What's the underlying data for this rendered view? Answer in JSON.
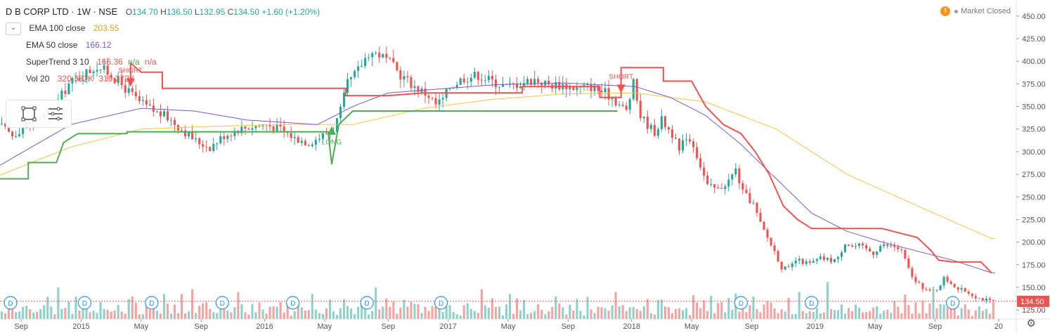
{
  "header": {
    "symbol": "D B CORP LTD · 1W · NSE",
    "ohlc": [
      {
        "label": "O",
        "value": "134.70"
      },
      {
        "label": "H",
        "value": "136.50"
      },
      {
        "label": "L",
        "value": "132.95"
      },
      {
        "label": "C",
        "value": "134.50"
      }
    ],
    "change": "+1.60 (+1.20%)",
    "market_status": "Market Closed"
  },
  "indicators": [
    {
      "name": "EMA 100 close",
      "values": [
        "203.55"
      ],
      "colors": [
        "#d4a017"
      ]
    },
    {
      "name": "EMA 50 close",
      "values": [
        "166.12"
      ],
      "colors": [
        "#7e57c2"
      ]
    },
    {
      "name": "SuperTrend 3 10",
      "values": [
        "166.36",
        "n/a",
        "n/a"
      ],
      "colors": [
        "#ef5350",
        "#4caf50",
        "#ef5350"
      ]
    },
    {
      "name": "Vol 20",
      "values": [
        "320.332K",
        "319.272K"
      ],
      "colors": [
        "#ef5350",
        "#ef5350"
      ]
    }
  ],
  "icons": {
    "collapse": "chevron-down-icon",
    "rectangle_tool": "rectangle-tool-icon",
    "lines_tool": "lines-tool-icon",
    "alert": "alert-icon",
    "settings": "gear-icon"
  },
  "colors": {
    "up": "#26a69a",
    "down": "#ef5350",
    "ema100": "#f5c342",
    "ema50": "#7e57c2",
    "st_red": "#ef5350",
    "st_green": "#4caf50",
    "vol_up": "#8ed2c9",
    "vol_down": "#f5a3a1"
  },
  "chart_data": {
    "type": "candlestick",
    "yaxis": {
      "ticks": [
        125,
        150,
        175,
        200,
        225,
        250,
        275,
        300,
        325,
        350,
        375,
        400,
        425,
        450
      ],
      "tick_labels": [
        "125.00",
        "150.00",
        "175.00",
        "200.00",
        "225.00",
        "250.00",
        "275.00",
        "300.00",
        "325.00",
        "350.00",
        "375.00",
        "400.00",
        "425.00",
        "450.00"
      ],
      "range": [
        115,
        460
      ]
    },
    "xaxis": {
      "ticks": [
        {
          "label": "Sep",
          "t": 6
        },
        {
          "label": "2015",
          "t": 23
        },
        {
          "label": "May",
          "t": 40
        },
        {
          "label": "Sep",
          "t": 57
        },
        {
          "label": "2016",
          "t": 75
        },
        {
          "label": "May",
          "t": 92
        },
        {
          "label": "Sep",
          "t": 110
        },
        {
          "label": "2017",
          "t": 127
        },
        {
          "label": "May",
          "t": 144
        },
        {
          "label": "Sep",
          "t": 161
        },
        {
          "label": "2018",
          "t": 179
        },
        {
          "label": "May",
          "t": 196
        },
        {
          "label": "Sep",
          "t": 213
        },
        {
          "label": "2019",
          "t": 231
        },
        {
          "label": "May",
          "t": 248
        },
        {
          "label": "Sep",
          "t": 265
        },
        {
          "label": "20",
          "t": 283
        }
      ],
      "range": [
        0,
        288
      ]
    },
    "price_keys": [
      [
        0,
        330
      ],
      [
        4,
        318
      ],
      [
        8,
        330
      ],
      [
        12,
        338
      ],
      [
        16,
        350
      ],
      [
        20,
        375
      ],
      [
        24,
        385
      ],
      [
        28,
        395
      ],
      [
        32,
        385
      ],
      [
        36,
        370
      ],
      [
        40,
        355
      ],
      [
        44,
        345
      ],
      [
        48,
        338
      ],
      [
        52,
        325
      ],
      [
        56,
        312
      ],
      [
        60,
        305
      ],
      [
        64,
        318
      ],
      [
        68,
        325
      ],
      [
        72,
        328
      ],
      [
        76,
        330
      ],
      [
        80,
        325
      ],
      [
        84,
        315
      ],
      [
        88,
        310
      ],
      [
        92,
        318
      ],
      [
        95,
        325
      ],
      [
        97,
        345
      ],
      [
        99,
        375
      ],
      [
        102,
        390
      ],
      [
        105,
        410
      ],
      [
        108,
        408
      ],
      [
        111,
        398
      ],
      [
        114,
        385
      ],
      [
        118,
        372
      ],
      [
        122,
        362
      ],
      [
        124,
        352
      ],
      [
        126,
        358
      ],
      [
        128,
        372
      ],
      [
        132,
        382
      ],
      [
        136,
        385
      ],
      [
        140,
        378
      ],
      [
        144,
        372
      ],
      [
        148,
        376
      ],
      [
        152,
        380
      ],
      [
        156,
        374
      ],
      [
        160,
        374
      ],
      [
        164,
        370
      ],
      [
        168,
        372
      ],
      [
        172,
        365
      ],
      [
        174,
        360
      ],
      [
        176,
        352
      ],
      [
        178,
        345
      ],
      [
        180,
        375
      ],
      [
        182,
        340
      ],
      [
        184,
        330
      ],
      [
        186,
        322
      ],
      [
        188,
        335
      ],
      [
        191,
        320
      ],
      [
        193,
        300
      ],
      [
        195,
        318
      ],
      [
        197,
        308
      ],
      [
        199,
        285
      ],
      [
        201,
        262
      ],
      [
        204,
        258
      ],
      [
        207,
        268
      ],
      [
        209,
        280
      ],
      [
        211,
        255
      ],
      [
        214,
        242
      ],
      [
        216,
        220
      ],
      [
        218,
        205
      ],
      [
        220,
        190
      ],
      [
        222,
        172
      ],
      [
        224,
        170
      ],
      [
        226,
        180
      ],
      [
        228,
        178
      ],
      [
        230,
        176
      ],
      [
        233,
        182
      ],
      [
        236,
        180
      ],
      [
        238,
        182
      ],
      [
        240,
        200
      ],
      [
        242,
        195
      ],
      [
        244,
        196
      ],
      [
        246,
        192
      ],
      [
        248,
        188
      ],
      [
        250,
        196
      ],
      [
        252,
        196
      ],
      [
        254,
        195
      ],
      [
        256,
        190
      ],
      [
        258,
        170
      ],
      [
        260,
        155
      ],
      [
        262,
        150
      ],
      [
        264,
        145
      ],
      [
        266,
        148
      ],
      [
        268,
        160
      ],
      [
        270,
        155
      ],
      [
        272,
        148
      ],
      [
        274,
        146
      ],
      [
        276,
        142
      ],
      [
        278,
        138
      ],
      [
        280,
        136
      ],
      [
        281,
        134.5
      ]
    ],
    "volume_levels": [
      0.3,
      0.2,
      0.4,
      0.6,
      0.3,
      0.2,
      0.5,
      0.7,
      0.4,
      0.3,
      0.2,
      0.5,
      0.4,
      0.6,
      0.3,
      0.2,
      0.8,
      0.4,
      0.3,
      0.5,
      0.3,
      0.6,
      0.2,
      0.4,
      0.9,
      0.3,
      0.5,
      0.4,
      0.7,
      0.3
    ],
    "ema100_keys": [
      [
        0,
        274
      ],
      [
        20,
        305
      ],
      [
        40,
        325
      ],
      [
        60,
        328
      ],
      [
        80,
        330
      ],
      [
        100,
        330
      ],
      [
        120,
        348
      ],
      [
        140,
        358
      ],
      [
        160,
        364
      ],
      [
        180,
        365
      ],
      [
        200,
        355
      ],
      [
        220,
        325
      ],
      [
        240,
        275
      ],
      [
        260,
        240
      ],
      [
        281,
        204
      ]
    ],
    "ema50_keys": [
      [
        0,
        285
      ],
      [
        20,
        330
      ],
      [
        40,
        348
      ],
      [
        55,
        345
      ],
      [
        70,
        335
      ],
      [
        90,
        330
      ],
      [
        100,
        350
      ],
      [
        110,
        365
      ],
      [
        120,
        368
      ],
      [
        140,
        374
      ],
      [
        160,
        376
      ],
      [
        180,
        372
      ],
      [
        190,
        360
      ],
      [
        200,
        340
      ],
      [
        210,
        308
      ],
      [
        220,
        270
      ],
      [
        230,
        232
      ],
      [
        240,
        212
      ],
      [
        250,
        200
      ],
      [
        260,
        190
      ],
      [
        270,
        180
      ],
      [
        281,
        166
      ]
    ],
    "supertrend_segments": [
      {
        "color": "red",
        "points": [
          [
            37,
            378
          ],
          [
            37,
            398
          ],
          [
            40,
            388
          ],
          [
            46,
            388
          ],
          [
            46,
            370
          ],
          [
            70,
            370
          ],
          [
            98,
            370
          ],
          [
            98,
            362
          ],
          [
            110,
            362
          ],
          [
            120,
            365
          ],
          [
            148,
            365
          ],
          [
            148,
            372
          ],
          [
            170,
            372
          ],
          [
            170,
            360
          ],
          [
            176,
            360
          ],
          [
            176,
            393
          ],
          [
            182,
            393
          ],
          [
            188,
            393
          ],
          [
            188,
            378
          ],
          [
            196,
            378
          ],
          [
            200,
            350
          ],
          [
            205,
            330
          ],
          [
            210,
            320
          ],
          [
            214,
            300
          ],
          [
            218,
            275
          ],
          [
            222,
            240
          ],
          [
            226,
            225
          ],
          [
            230,
            215
          ],
          [
            250,
            215
          ],
          [
            260,
            205
          ],
          [
            264,
            190
          ],
          [
            266,
            180
          ],
          [
            270,
            178
          ],
          [
            278,
            178
          ],
          [
            281,
            166
          ]
        ]
      },
      {
        "color": "green",
        "points": [
          [
            0,
            270
          ],
          [
            8,
            270
          ],
          [
            8,
            288
          ],
          [
            16,
            288
          ],
          [
            18,
            310
          ],
          [
            22,
            320
          ],
          [
            36,
            320
          ],
          [
            36,
            322
          ],
          [
            56,
            322
          ],
          [
            88,
            322
          ],
          [
            93,
            322
          ],
          [
            94,
            286
          ],
          [
            96,
            330
          ],
          [
            100,
            345
          ],
          [
            112,
            345
          ],
          [
            170,
            345
          ],
          [
            175,
            345
          ]
        ]
      }
    ],
    "signals": [
      {
        "type": "short",
        "label": "SHORT",
        "t": 37,
        "price": 375
      },
      {
        "type": "long",
        "label": "LONG",
        "t": 94,
        "price": 325
      },
      {
        "type": "short",
        "label": "SHORT",
        "t": 176,
        "price": 368
      }
    ],
    "last_price": {
      "value": 134.5,
      "label": "134.50"
    },
    "dividend_marker": "D",
    "dividend_t": [
      1,
      22,
      41,
      61,
      81,
      102,
      123,
      208,
      228,
      268
    ]
  }
}
